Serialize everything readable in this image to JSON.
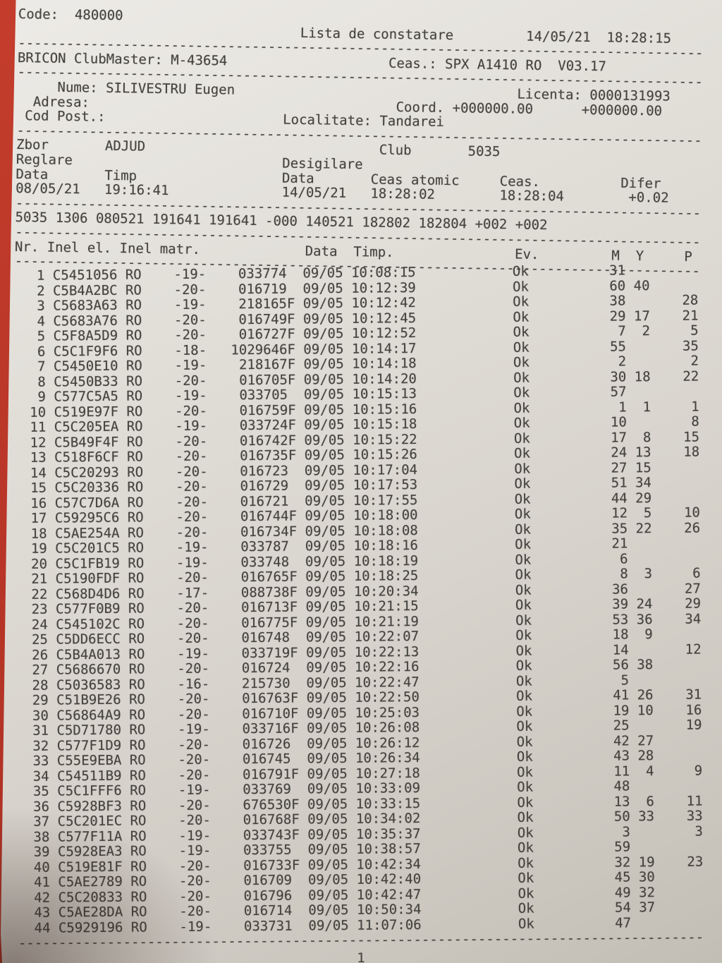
{
  "photo": {
    "background_red": "#b83527",
    "paper_color": "#ddd9d2",
    "text_color": "#45433e"
  },
  "header": {
    "code_label": "Code:",
    "code_value": "480000",
    "title": "Lista de constatare",
    "date": "14/05/21",
    "time": "18:28:15",
    "device_label": "BRICON ClubMaster:",
    "device_value": "M-43654",
    "clock_label": "Ceas.:",
    "clock_value": "SPX A1410 RO  V03.17",
    "name_label": "Nume:",
    "name_value": "SILIVESTRU Eugen",
    "license_label": "Licenta:",
    "license_value": "0000131993",
    "address_label": "Adresa:",
    "coord_label": "Coord.",
    "coord_lat": "+000000.00",
    "coord_lon": "+000000.00",
    "postcode_label": "Cod Post.:",
    "locality_label": "Localitate:",
    "locality_value": "Tandarei"
  },
  "flight": {
    "zbor_label": "Zbor",
    "zbor_value": "ADJUD",
    "club_label": "Club",
    "club_value": "5035",
    "reglare_label": "Reglare",
    "desigilare_label": "Desigilare",
    "data_label": "Data",
    "timp_label": "Timp",
    "reglare_date": "08/05/21",
    "reglare_time": "19:16:41",
    "ceas_atomic_label": "Ceas atomic",
    "ceas_label": "Ceas.",
    "difer_label": "Difer",
    "desigilare_date": "14/05/21",
    "atomic_time": "18:28:02",
    "ceas_time": "18:28:04",
    "difer_value": "+0.02",
    "summary_line": "5035 1306 080521 191641 191641 -000 140521 182802 182804 +002 +002"
  },
  "table": {
    "headers": {
      "nr": "Nr.",
      "inel_el": "Inel el.",
      "inel_matr": "Inel matr.",
      "data": "Data",
      "timp": "Timp.",
      "ev": "Ev.",
      "m": "M",
      "y": "Y",
      "p": "P"
    },
    "rows": [
      {
        "nr": "1",
        "inel": "C5451056",
        "country": "RO",
        "band": "-19-",
        "matr": "033774",
        "data": "09/05",
        "timp": "10:08:15",
        "ev": "Ok",
        "m": "31",
        "y": "",
        "p": ""
      },
      {
        "nr": "2",
        "inel": "C5B4A2BC",
        "country": "RO",
        "band": "-20-",
        "matr": "016719",
        "data": "09/05",
        "timp": "10:12:39",
        "ev": "Ok",
        "m": "60",
        "y": "40",
        "p": ""
      },
      {
        "nr": "3",
        "inel": "C5683A63",
        "country": "RO",
        "band": "-19-",
        "matr": "218165F",
        "data": "09/05",
        "timp": "10:12:42",
        "ev": "Ok",
        "m": "38",
        "y": "",
        "p": "28"
      },
      {
        "nr": "4",
        "inel": "C5683A76",
        "country": "RO",
        "band": "-20-",
        "matr": "016749F",
        "data": "09/05",
        "timp": "10:12:45",
        "ev": "Ok",
        "m": "29",
        "y": "17",
        "p": "21"
      },
      {
        "nr": "5",
        "inel": "C5F8A5D9",
        "country": "RO",
        "band": "-20-",
        "matr": "016727F",
        "data": "09/05",
        "timp": "10:12:52",
        "ev": "Ok",
        "m": "7",
        "y": "2",
        "p": "5"
      },
      {
        "nr": "6",
        "inel": "C5C1F9F6",
        "country": "RO",
        "band": "-18-",
        "matr": "1029646F",
        "data": "09/05",
        "timp": "10:14:17",
        "ev": "Ok",
        "m": "55",
        "y": "",
        "p": "35"
      },
      {
        "nr": "7",
        "inel": "C5450E10",
        "country": "RO",
        "band": "-19-",
        "matr": "218167F",
        "data": "09/05",
        "timp": "10:14:18",
        "ev": "Ok",
        "m": "2",
        "y": "",
        "p": "2"
      },
      {
        "nr": "8",
        "inel": "C5450B33",
        "country": "RO",
        "band": "-20-",
        "matr": "016705F",
        "data": "09/05",
        "timp": "10:14:20",
        "ev": "Ok",
        "m": "30",
        "y": "18",
        "p": "22"
      },
      {
        "nr": "9",
        "inel": "C577C5A5",
        "country": "RO",
        "band": "-19-",
        "matr": "033705",
        "data": "09/05",
        "timp": "10:15:13",
        "ev": "Ok",
        "m": "57",
        "y": "",
        "p": ""
      },
      {
        "nr": "10",
        "inel": "C519E97F",
        "country": "RO",
        "band": "-20-",
        "matr": "016759F",
        "data": "09/05",
        "timp": "10:15:16",
        "ev": "Ok",
        "m": "1",
        "y": "1",
        "p": "1"
      },
      {
        "nr": "11",
        "inel": "C5C205EA",
        "country": "RO",
        "band": "-19-",
        "matr": "033724F",
        "data": "09/05",
        "timp": "10:15:18",
        "ev": "Ok",
        "m": "10",
        "y": "",
        "p": "8"
      },
      {
        "nr": "12",
        "inel": "C5B49F4F",
        "country": "RO",
        "band": "-20-",
        "matr": "016742F",
        "data": "09/05",
        "timp": "10:15:22",
        "ev": "Ok",
        "m": "17",
        "y": "8",
        "p": "15"
      },
      {
        "nr": "13",
        "inel": "C518F6CF",
        "country": "RO",
        "band": "-20-",
        "matr": "016735F",
        "data": "09/05",
        "timp": "10:15:26",
        "ev": "Ok",
        "m": "24",
        "y": "13",
        "p": "18"
      },
      {
        "nr": "14",
        "inel": "C5C20293",
        "country": "RO",
        "band": "-20-",
        "matr": "016723",
        "data": "09/05",
        "timp": "10:17:04",
        "ev": "Ok",
        "m": "27",
        "y": "15",
        "p": ""
      },
      {
        "nr": "15",
        "inel": "C5C20336",
        "country": "RO",
        "band": "-20-",
        "matr": "016729",
        "data": "09/05",
        "timp": "10:17:53",
        "ev": "Ok",
        "m": "51",
        "y": "34",
        "p": ""
      },
      {
        "nr": "16",
        "inel": "C57C7D6A",
        "country": "RO",
        "band": "-20-",
        "matr": "016721",
        "data": "09/05",
        "timp": "10:17:55",
        "ev": "Ok",
        "m": "44",
        "y": "29",
        "p": ""
      },
      {
        "nr": "17",
        "inel": "C59295C6",
        "country": "RO",
        "band": "-20-",
        "matr": "016744F",
        "data": "09/05",
        "timp": "10:18:00",
        "ev": "Ok",
        "m": "12",
        "y": "5",
        "p": "10"
      },
      {
        "nr": "18",
        "inel": "C5AE254A",
        "country": "RO",
        "band": "-20-",
        "matr": "016734F",
        "data": "09/05",
        "timp": "10:18:08",
        "ev": "Ok",
        "m": "35",
        "y": "22",
        "p": "26"
      },
      {
        "nr": "19",
        "inel": "C5C201C5",
        "country": "RO",
        "band": "-19-",
        "matr": "033787",
        "data": "09/05",
        "timp": "10:18:16",
        "ev": "Ok",
        "m": "21",
        "y": "",
        "p": ""
      },
      {
        "nr": "20",
        "inel": "C5C1FB19",
        "country": "RO",
        "band": "-19-",
        "matr": "033748",
        "data": "09/05",
        "timp": "10:18:19",
        "ev": "Ok",
        "m": "6",
        "y": "",
        "p": ""
      },
      {
        "nr": "21",
        "inel": "C5190FDF",
        "country": "RO",
        "band": "-20-",
        "matr": "016765F",
        "data": "09/05",
        "timp": "10:18:25",
        "ev": "Ok",
        "m": "8",
        "y": "3",
        "p": "6"
      },
      {
        "nr": "22",
        "inel": "C568D4D6",
        "country": "RO",
        "band": "-17-",
        "matr": "088738F",
        "data": "09/05",
        "timp": "10:20:34",
        "ev": "Ok",
        "m": "36",
        "y": "",
        "p": "27"
      },
      {
        "nr": "23",
        "inel": "C577F0B9",
        "country": "RO",
        "band": "-20-",
        "matr": "016713F",
        "data": "09/05",
        "timp": "10:21:15",
        "ev": "Ok",
        "m": "39",
        "y": "24",
        "p": "29"
      },
      {
        "nr": "24",
        "inel": "C545102C",
        "country": "RO",
        "band": "-20-",
        "matr": "016775F",
        "data": "09/05",
        "timp": "10:21:19",
        "ev": "Ok",
        "m": "53",
        "y": "36",
        "p": "34"
      },
      {
        "nr": "25",
        "inel": "C5DD6ECC",
        "country": "RO",
        "band": "-20-",
        "matr": "016748",
        "data": "09/05",
        "timp": "10:22:07",
        "ev": "Ok",
        "m": "18",
        "y": "9",
        "p": ""
      },
      {
        "nr": "26",
        "inel": "C5B4A013",
        "country": "RO",
        "band": "-19-",
        "matr": "033719F",
        "data": "09/05",
        "timp": "10:22:13",
        "ev": "Ok",
        "m": "14",
        "y": "",
        "p": "12"
      },
      {
        "nr": "27",
        "inel": "C5686670",
        "country": "RO",
        "band": "-20-",
        "matr": "016724",
        "data": "09/05",
        "timp": "10:22:16",
        "ev": "Ok",
        "m": "56",
        "y": "38",
        "p": ""
      },
      {
        "nr": "28",
        "inel": "C5036583",
        "country": "RO",
        "band": "-16-",
        "matr": "215730",
        "data": "09/05",
        "timp": "10:22:47",
        "ev": "Ok",
        "m": "5",
        "y": "",
        "p": ""
      },
      {
        "nr": "29",
        "inel": "C51B9E26",
        "country": "RO",
        "band": "-20-",
        "matr": "016763F",
        "data": "09/05",
        "timp": "10:22:50",
        "ev": "Ok",
        "m": "41",
        "y": "26",
        "p": "31"
      },
      {
        "nr": "30",
        "inel": "C56864A9",
        "country": "RO",
        "band": "-20-",
        "matr": "016710F",
        "data": "09/05",
        "timp": "10:25:03",
        "ev": "Ok",
        "m": "19",
        "y": "10",
        "p": "16"
      },
      {
        "nr": "31",
        "inel": "C5D71780",
        "country": "RO",
        "band": "-19-",
        "matr": "033716F",
        "data": "09/05",
        "timp": "10:26:08",
        "ev": "Ok",
        "m": "25",
        "y": "",
        "p": "19"
      },
      {
        "nr": "32",
        "inel": "C577F1D9",
        "country": "RO",
        "band": "-20-",
        "matr": "016726",
        "data": "09/05",
        "timp": "10:26:12",
        "ev": "Ok",
        "m": "42",
        "y": "27",
        "p": ""
      },
      {
        "nr": "33",
        "inel": "C55E9EBA",
        "country": "RO",
        "band": "-20-",
        "matr": "016745",
        "data": "09/05",
        "timp": "10:26:34",
        "ev": "Ok",
        "m": "43",
        "y": "28",
        "p": ""
      },
      {
        "nr": "34",
        "inel": "C54511B9",
        "country": "RO",
        "band": "-20-",
        "matr": "016791F",
        "data": "09/05",
        "timp": "10:27:18",
        "ev": "Ok",
        "m": "11",
        "y": "4",
        "p": "9"
      },
      {
        "nr": "35",
        "inel": "C5C1FFF6",
        "country": "RO",
        "band": "-19-",
        "matr": "033769",
        "data": "09/05",
        "timp": "10:33:09",
        "ev": "Ok",
        "m": "48",
        "y": "",
        "p": ""
      },
      {
        "nr": "36",
        "inel": "C5928BF3",
        "country": "RO",
        "band": "-20-",
        "matr": "676530F",
        "data": "09/05",
        "timp": "10:33:15",
        "ev": "Ok",
        "m": "13",
        "y": "6",
        "p": "11"
      },
      {
        "nr": "37",
        "inel": "C5C201EC",
        "country": "RO",
        "band": "-20-",
        "matr": "016768F",
        "data": "09/05",
        "timp": "10:34:02",
        "ev": "Ok",
        "m": "50",
        "y": "33",
        "p": "33"
      },
      {
        "nr": "38",
        "inel": "C577F11A",
        "country": "RO",
        "band": "-19-",
        "matr": "033743F",
        "data": "09/05",
        "timp": "10:35:37",
        "ev": "Ok",
        "m": "3",
        "y": "",
        "p": "3"
      },
      {
        "nr": "39",
        "inel": "C5928EA3",
        "country": "RO",
        "band": "-19-",
        "matr": "033755",
        "data": "09/05",
        "timp": "10:38:57",
        "ev": "Ok",
        "m": "59",
        "y": "",
        "p": ""
      },
      {
        "nr": "40",
        "inel": "C519E81F",
        "country": "RO",
        "band": "-20-",
        "matr": "016733F",
        "data": "09/05",
        "timp": "10:42:34",
        "ev": "Ok",
        "m": "32",
        "y": "19",
        "p": "23"
      },
      {
        "nr": "41",
        "inel": "C5AE2789",
        "country": "RO",
        "band": "-20-",
        "matr": "016709",
        "data": "09/05",
        "timp": "10:42:40",
        "ev": "Ok",
        "m": "45",
        "y": "30",
        "p": ""
      },
      {
        "nr": "42",
        "inel": "C5C20833",
        "country": "RO",
        "band": "-20-",
        "matr": "016796",
        "data": "09/05",
        "timp": "10:42:47",
        "ev": "Ok",
        "m": "49",
        "y": "32",
        "p": ""
      },
      {
        "nr": "43",
        "inel": "C5AE28DA",
        "country": "RO",
        "band": "-20-",
        "matr": "016714",
        "data": "09/05",
        "timp": "10:50:34",
        "ev": "Ok",
        "m": "54",
        "y": "37",
        "p": ""
      },
      {
        "nr": "44",
        "inel": "C5929196",
        "country": "RO",
        "band": "-19-",
        "matr": "033731",
        "data": "09/05",
        "timp": "11:07:06",
        "ev": "Ok",
        "m": "47",
        "y": "",
        "p": ""
      }
    ]
  },
  "footer": {
    "page": "1"
  }
}
